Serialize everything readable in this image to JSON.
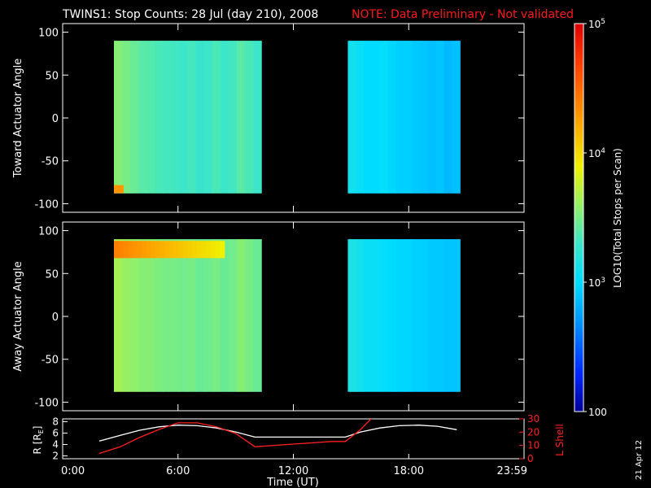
{
  "header": {
    "title": "TWINS1: Stop Counts: 28 Jul (day 210), 2008",
    "note": "NOTE: Data Preliminary - Not validated",
    "note_color": "#ff1a1a"
  },
  "footer": {
    "date_stamp": "21 Apr 12"
  },
  "colors": {
    "plot_bg": "#000000",
    "axis": "#ffffff",
    "lshell": "#ff2020",
    "radius_line": "#ffffff"
  },
  "chart_data": [
    {
      "type": "heatmap",
      "ylabel": "Toward Actuator Angle",
      "ylim": [
        -110,
        110
      ],
      "yticks": [
        -100,
        -50,
        0,
        50,
        100
      ],
      "xlim_hours": [
        0,
        24
      ],
      "blocks": [
        {
          "x_start": "02:40",
          "x_end": "10:20",
          "y_range": [
            -88,
            90
          ],
          "columns_log10": [
            3.55,
            3.5,
            3.45,
            3.4,
            3.38,
            3.35,
            3.33,
            3.32,
            3.3,
            3.33,
            3.28,
            3.3,
            3.35,
            3.3,
            3.32,
            3.4,
            3.35,
            3.3
          ],
          "hotspot": {
            "x": "02:45",
            "y": -84,
            "log10": 4.3
          }
        },
        {
          "x_start": "14:50",
          "x_end": "20:40",
          "y_range": [
            -88,
            90
          ],
          "columns_log10": [
            3.1,
            3.05,
            3.0,
            3.0,
            3.02,
            2.98,
            2.95,
            2.95,
            2.92,
            2.9,
            2.88,
            2.9,
            2.85,
            2.88
          ]
        }
      ]
    },
    {
      "type": "heatmap",
      "ylabel": "Away Actuator Angle",
      "ylim": [
        -110,
        110
      ],
      "yticks": [
        -100,
        -50,
        0,
        50,
        100
      ],
      "xlim_hours": [
        0,
        24
      ],
      "blocks": [
        {
          "x_start": "02:40",
          "x_end": "10:20",
          "y_range": [
            -88,
            90
          ],
          "columns_log10": [
            3.65,
            3.6,
            3.58,
            3.55,
            3.55,
            3.52,
            3.5,
            3.5,
            3.48,
            3.5,
            3.45,
            3.47,
            3.5,
            3.45,
            3.48,
            3.55,
            3.5,
            3.45
          ],
          "band": {
            "y_range": [
              68,
              88
            ],
            "log10_start": 4.4,
            "log10_end": 3.9
          }
        },
        {
          "x_start": "14:50",
          "x_end": "20:40",
          "y_range": [
            -88,
            90
          ],
          "columns_log10": [
            3.15,
            3.1,
            3.05,
            3.05,
            3.02,
            3.0,
            2.98,
            2.98,
            2.95,
            2.95,
            2.92,
            2.92,
            2.9,
            2.9
          ]
        }
      ]
    },
    {
      "type": "line",
      "ylabel_left": "R [R",
      "ylabel_left_sub": "E",
      "ylabel_left_end": "]",
      "ylabel_right": "L Shell",
      "xlabel": "Time (UT)",
      "xticks": [
        "0:00",
        "6:00",
        "12:00",
        "18:00",
        "23:59"
      ],
      "xtick_hours": [
        0,
        6,
        12,
        18,
        24
      ],
      "left_axis": {
        "ylim": [
          1.5,
          8.5
        ],
        "yticks": [
          2,
          4,
          6,
          8
        ]
      },
      "right_axis": {
        "ylim": [
          0,
          30
        ],
        "yticks": [
          0,
          10,
          20,
          30
        ]
      },
      "series": [
        {
          "axis": "left",
          "x_hours": [
            1.9,
            3,
            4,
            5,
            6,
            7,
            8,
            9,
            10,
            11,
            12,
            13,
            14,
            14.7,
            15.5,
            16.5,
            17.5,
            18.5,
            19.5,
            20.5
          ],
          "values": [
            4.6,
            5.6,
            6.5,
            7.1,
            7.4,
            7.3,
            6.9,
            6.2,
            5.3,
            5.3,
            5.3,
            5.3,
            5.3,
            5.3,
            6.2,
            6.9,
            7.3,
            7.4,
            7.2,
            6.6
          ]
        },
        {
          "axis": "right",
          "x_hours": [
            1.9,
            3,
            4,
            5,
            6,
            7,
            8,
            9,
            10,
            12,
            14,
            14.7,
            15.5,
            16.1
          ],
          "values": [
            4,
            9,
            16,
            22,
            27,
            27,
            24,
            19,
            9,
            11,
            13,
            13,
            22,
            31
          ]
        }
      ],
      "colorbar": {
        "label": "LOG10(Total Stops per Scan)",
        "range_log10": [
          2,
          5
        ],
        "ticks": [
          {
            "v": 5,
            "label": "10",
            "sup": "5"
          },
          {
            "v": 4,
            "label": "10",
            "sup": "4"
          },
          {
            "v": 3,
            "label": "10",
            "sup": "3"
          },
          {
            "v": 2,
            "label": "100",
            "sup": ""
          }
        ]
      }
    }
  ]
}
